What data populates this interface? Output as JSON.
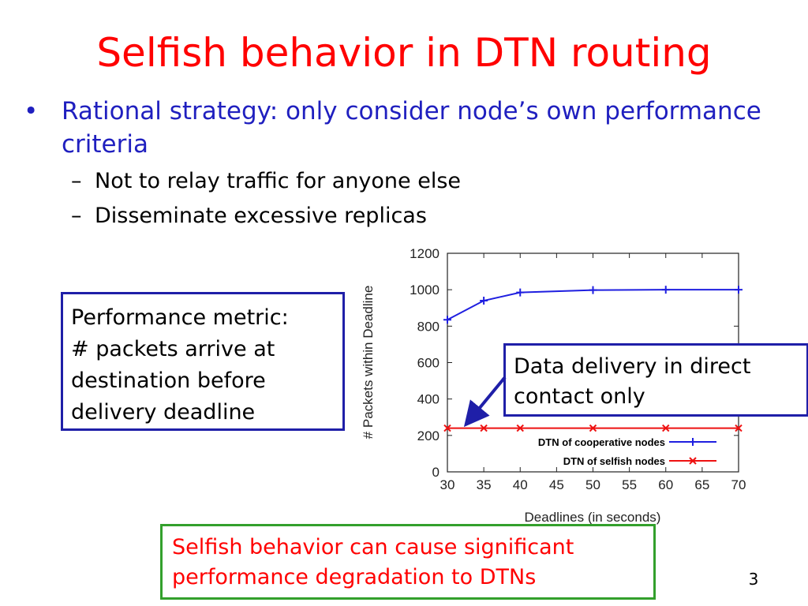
{
  "slide": {
    "title": "Selfish behavior in DTN routing",
    "bullet_symbol": "•",
    "dash_symbol": "–",
    "bullet": "Rational strategy: only consider node’s own performance criteria",
    "sub_bullets": [
      "Not to relay traffic for anyone else",
      "Disseminate excessive replicas"
    ],
    "perf_box": [
      "Performance metric:",
      "# packets arrive at",
      "destination before",
      "delivery deadline"
    ],
    "direct_box": [
      "Data delivery in direct",
      "contact only"
    ],
    "selfish_box": [
      "Selfish behavior can cause significant",
      "performance degradation to DTNs"
    ],
    "page_number": "3"
  },
  "colors": {
    "title": "#ff0000",
    "bullet": "#1f1fbf",
    "cooperative": "#1f1fe0",
    "selfish": "#ee1111",
    "box_border_blue": "#1f1fa8",
    "box_border_green": "#33a02c"
  },
  "chart_data": {
    "type": "line",
    "xlabel": "Deadlines (in seconds)",
    "ylabel": "# Packets within Deadline",
    "xlim": [
      30,
      70
    ],
    "ylim": [
      0,
      1200
    ],
    "xticks": [
      30,
      35,
      40,
      45,
      50,
      55,
      60,
      65,
      70
    ],
    "yticks": [
      0,
      200,
      400,
      600,
      800,
      1000,
      1200
    ],
    "grid": false,
    "legend_position": "bottom-right",
    "series": [
      {
        "name": "DTN of cooperative nodes",
        "marker": "+",
        "color": "#1f1fe0",
        "x": [
          30,
          35,
          40,
          50,
          60,
          70
        ],
        "y": [
          835,
          940,
          985,
          998,
          1000,
          1000
        ]
      },
      {
        "name": "DTN of selfish nodes",
        "marker": "x",
        "color": "#ee1111",
        "x": [
          30,
          35,
          40,
          50,
          60,
          70
        ],
        "y": [
          240,
          240,
          240,
          240,
          240,
          240
        ]
      }
    ]
  }
}
